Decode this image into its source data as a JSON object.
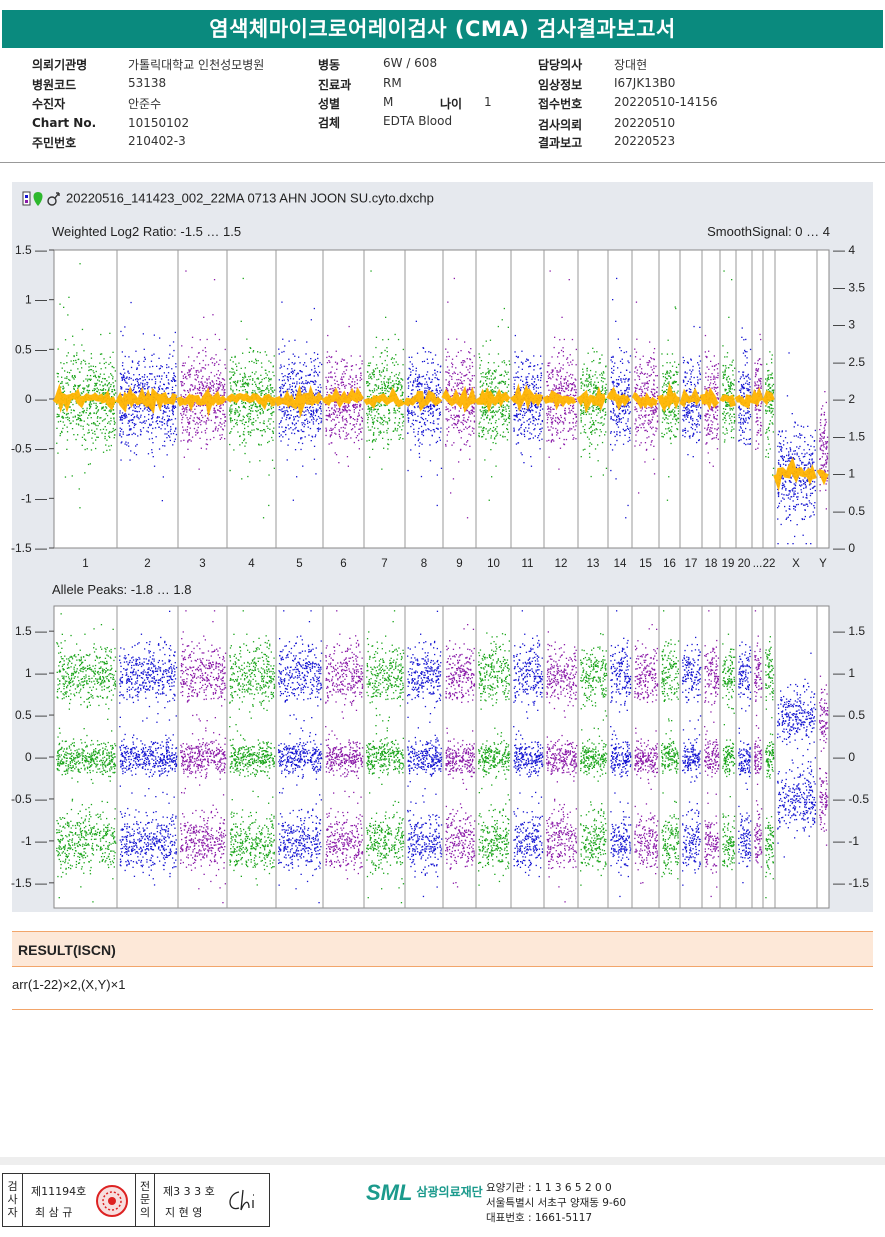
{
  "report": {
    "title": "염색체마이크로어레이검사 (CMA) 검사결과보고서",
    "fields": [
      {
        "label": "의뢰기관명",
        "value": "가톨릭대학교 인천성모병원"
      },
      {
        "label": "병원코드",
        "value": "53138"
      },
      {
        "label": "수진자",
        "value": "안준수"
      },
      {
        "label": "Chart No.",
        "value": "10150102"
      },
      {
        "label": "주민번호",
        "value": "210402-3"
      },
      {
        "label": "병동",
        "value": "6W / 608"
      },
      {
        "label": "진료과",
        "value": "RM"
      },
      {
        "label": "성별",
        "value": "M"
      },
      {
        "label": "나이",
        "value": "1"
      },
      {
        "label": "검체",
        "value": "EDTA Blood"
      },
      {
        "label": "담당의사",
        "value": "장대현"
      },
      {
        "label": "임상정보",
        "value": "I67JK13B0"
      },
      {
        "label": "접수번호",
        "value": "20220510-14156"
      },
      {
        "label": "검사의뢰",
        "value": "20220510"
      },
      {
        "label": "결과보고",
        "value": "20220523"
      }
    ]
  },
  "file_name": "20220516_141423_002_22MA 0713 AHN JOON SU.cyto.dxchp",
  "colors": {
    "green": "#1aa51a",
    "blue": "#1414d2",
    "purple": "#8a1aa8",
    "orange": "#ffb400",
    "header": "#0a8a7e"
  },
  "chart_data": [
    {
      "type": "scatter",
      "title": "Weighted Log2 Ratio: -1.5 … 1.5",
      "right_title": "SmoothSignal: 0 … 4",
      "ylim": [
        -1.5,
        1.5
      ],
      "y2lim": [
        0,
        4
      ],
      "yticks": [
        "1.5",
        "1",
        "0.5",
        "0",
        "-0.5",
        "-1",
        "-1.5"
      ],
      "y2ticks": [
        "4",
        "3.5",
        "3",
        "2.5",
        "2",
        "1.5",
        "1",
        "0.5",
        "0"
      ],
      "categories": [
        "1",
        "2",
        "3",
        "4",
        "5",
        "6",
        "7",
        "8",
        "9",
        "10",
        "11",
        "12",
        "13",
        "14",
        "15",
        "16",
        "17",
        "18",
        "19",
        "20",
        "...",
        "22",
        "X",
        "Y"
      ],
      "smooth_signal_autosome": 2,
      "smooth_signal_x": 1
    },
    {
      "type": "scatter",
      "title": "Allele Peaks: -1.8 … 1.8",
      "ylim": [
        -1.8,
        1.8
      ],
      "yticks": [
        "1.5",
        "1",
        "0.5",
        "0",
        "-0.5",
        "-1",
        "-1.5"
      ],
      "y2ticks": [
        "1.5",
        "1",
        "0.5",
        "0",
        "-0.5",
        "-1",
        "-1.5"
      ],
      "peaks_autosome": [
        1,
        0,
        -1
      ],
      "peaks_x": [
        0.5,
        -0.5
      ]
    }
  ],
  "result": {
    "heading": "RESULT(ISCN)",
    "text": "arr(1-22)×2,(X,Y)×1"
  },
  "signature": {
    "inspector_label": "검사자",
    "inspector_no": "제11194호",
    "inspector_name": "최 삼 규",
    "specialist_label": "전문의",
    "specialist_no": "제3 3 3 호",
    "specialist_name": "지 현 영"
  },
  "lab": {
    "logo": "SML",
    "name": "삼광의료재단",
    "code": "요양기관 : 1 1 3 6 5 2 0 0",
    "address": "서울특별시 서초구 양재동 9-60",
    "phone": "대표번호 : 1661-5117"
  }
}
